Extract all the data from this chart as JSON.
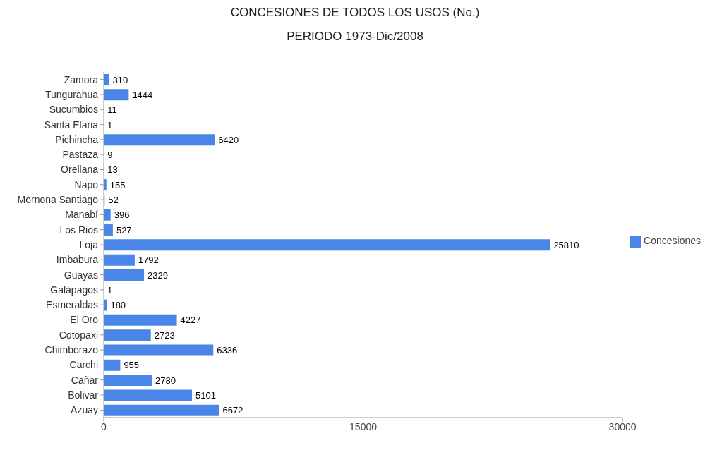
{
  "chart_data": {
    "type": "bar",
    "orientation": "horizontal",
    "title": "CONCESIONES DE TODOS LOS USOS (No.)",
    "subtitle": "PERIODO 1973-Dic/2008",
    "categories": [
      "Zamora",
      "Tungurahua",
      "Sucumbios",
      "Santa Elana",
      "Pichincha",
      "Pastaza",
      "Orellana",
      "Napo",
      "Mornona Santiago",
      "Manabí",
      "Los Rios",
      "Loja",
      "Imbabura",
      "Guayas",
      "Galápagos",
      "Esmeraldas",
      "El Oro",
      "Cotopaxi",
      "Chimborazo",
      "Carchi",
      "Cañar",
      "Bolivar",
      "Azuay"
    ],
    "series": [
      {
        "name": "Concesiones",
        "color": "#4a86e8",
        "values": [
          310,
          1444,
          11,
          1,
          6420,
          9,
          13,
          155,
          52,
          396,
          527,
          25810,
          1792,
          2329,
          1,
          180,
          4227,
          2723,
          6336,
          955,
          2780,
          5101,
          6672
        ]
      }
    ],
    "xlim": [
      0,
      30000
    ],
    "xticks": [
      0,
      15000,
      30000
    ],
    "data_labels": true,
    "legend": "right"
  }
}
